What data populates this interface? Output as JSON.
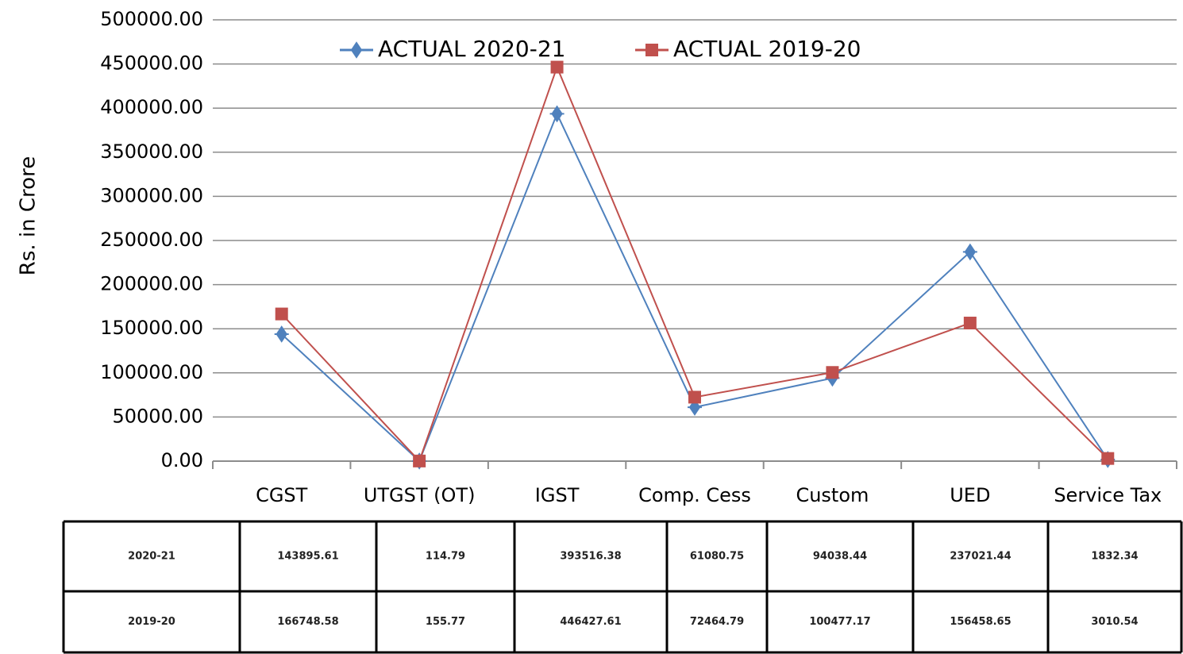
{
  "chart_data": {
    "type": "line",
    "y_label": "Rs. in Crore",
    "categories": [
      "CGST",
      "UTGST (OT)",
      "IGST",
      "Comp. Cess",
      "Custom",
      "UED",
      "Service Tax"
    ],
    "series": [
      {
        "name": "ACTUAL 2020-21",
        "color": "#4f81bd",
        "marker": "diamond",
        "values": [
          143895.61,
          114.79,
          393516.38,
          61080.75,
          94038.44,
          237021.44,
          1832.34
        ]
      },
      {
        "name": "ACTUAL 2019-20",
        "color": "#c0504d",
        "marker": "square",
        "values": [
          166748.58,
          155.77,
          446427.61,
          72464.79,
          100477.17,
          156458.65,
          3010.54
        ]
      }
    ],
    "ylim": [
      0,
      500000
    ],
    "yticks": [
      {
        "value": 0,
        "label": "0.00"
      },
      {
        "value": 50000,
        "label": "50000.00"
      },
      {
        "value": 100000,
        "label": "100000.00"
      },
      {
        "value": 150000,
        "label": "150000.00"
      },
      {
        "value": 200000,
        "label": "200000.00"
      },
      {
        "value": 250000,
        "label": "250000.00"
      },
      {
        "value": 300000,
        "label": "300000.00"
      },
      {
        "value": 350000,
        "label": "350000.00"
      },
      {
        "value": 400000,
        "label": "400000.00"
      },
      {
        "value": 450000,
        "label": "450000.00"
      },
      {
        "value": 500000,
        "label": "500000.00"
      }
    ],
    "grid": true,
    "legend": "top",
    "table": {
      "row_labels": [
        "2020-21",
        "2019-20"
      ]
    }
  }
}
